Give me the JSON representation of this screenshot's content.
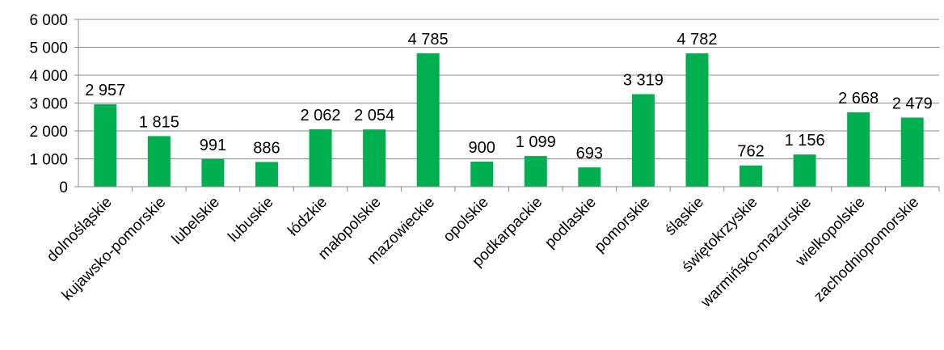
{
  "chart_data": {
    "type": "bar",
    "title": "",
    "xlabel": "",
    "ylabel": "",
    "ylim": [
      0,
      6000
    ],
    "yticks": [
      0,
      1000,
      2000,
      3000,
      4000,
      5000,
      6000
    ],
    "ytick_labels": [
      "0",
      "1 000",
      "2 000",
      "3 000",
      "4 000",
      "5 000",
      "6 000"
    ],
    "grid": true,
    "legend": "none",
    "bar_color": "#00b050",
    "categories": [
      "dolnośląskie",
      "kujawsko-pomorskie",
      "lubelskie",
      "lubuskie",
      "łódzkie",
      "małopolskie",
      "mazowieckie",
      "opolskie",
      "podkarpackie",
      "podlaskie",
      "pomorskie",
      "śląskie",
      "świętokrzyskie",
      "warmińsko-mazurskie",
      "wielkopolskie",
      "zachodniopomorskie"
    ],
    "values": [
      2957,
      1815,
      991,
      886,
      2062,
      2054,
      4785,
      900,
      1099,
      693,
      3319,
      4782,
      762,
      1156,
      2668,
      2479
    ],
    "value_labels": [
      "2 957",
      "1 815",
      "991",
      "886",
      "2 062",
      "2 054",
      "4 785",
      "900",
      "1 099",
      "693",
      "3 319",
      "4 782",
      "762",
      "1 156",
      "2 668",
      "2 479"
    ]
  }
}
